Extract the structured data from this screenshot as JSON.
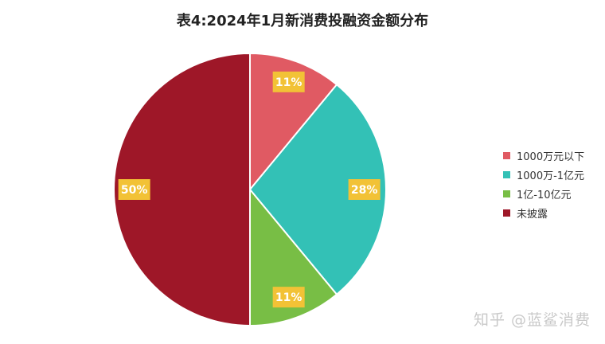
{
  "chart_data": {
    "type": "pie",
    "title": "表4:2024年1月新消费投融资金额分布",
    "categories": [
      "1000万元以下",
      "1000万-1亿元",
      "1亿-10亿元",
      "未披露"
    ],
    "values": [
      11,
      28,
      11,
      50
    ],
    "labels": [
      "11%",
      "28%",
      "11%",
      "50%"
    ],
    "colors": [
      "#e05a63",
      "#33c1b6",
      "#78be45",
      "#9e1728"
    ],
    "label_bg": "#f2c236",
    "legend": "right"
  },
  "watermark": "知乎 @蓝鲨消费"
}
